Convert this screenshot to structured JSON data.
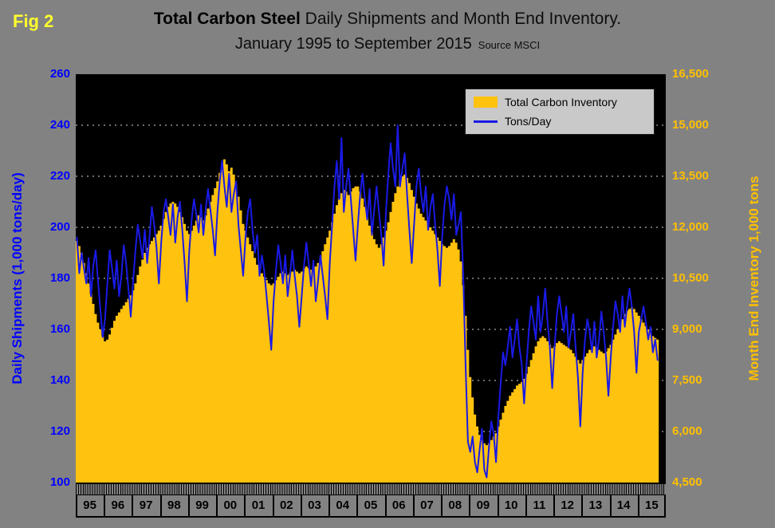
{
  "header": {
    "fig": "Fig 2",
    "title_bold": "Total Carbon Steel",
    "title_rest": " Daily Shipments and Month End Inventory.",
    "subtitle": "January 1995 to September 2015",
    "source": "Source MSCI"
  },
  "left_axis": {
    "title": "Daily Shipments (1,000 tons/day)",
    "color": "#0000FF",
    "ticks": [
      "260",
      "240",
      "220",
      "200",
      "180",
      "160",
      "140",
      "120",
      "100"
    ]
  },
  "right_axis": {
    "title": "Month End Inventory 1,000 tons",
    "color": "#FFC000",
    "ticks": [
      "16,500",
      "15,000",
      "13,500",
      "12,000",
      "10,500",
      "9,000",
      "7,500",
      "6,000",
      "4,500"
    ]
  },
  "x_axis": {
    "years": [
      "95",
      "96",
      "97",
      "98",
      "99",
      "00",
      "01",
      "02",
      "03",
      "04",
      "05",
      "06",
      "07",
      "08",
      "09",
      "10",
      "11",
      "12",
      "13",
      "14",
      "15"
    ]
  },
  "legend": {
    "items": [
      {
        "label": "Total Carbon Inventory",
        "swatch": "area",
        "color": "#FFC20E"
      },
      {
        "label": "Tons/Day",
        "swatch": "line",
        "color": "#1A1AE6"
      }
    ]
  },
  "chart_data": {
    "type": "area+line combo",
    "x_unit": "month",
    "x_start": "1995-01",
    "x_end": "2015-09",
    "x_domain_months": 252,
    "grid": "horizontal white dashed",
    "plot_background": "#000000",
    "left_axis": {
      "label": "Daily Shipments (1,000 tons/day)",
      "range": [
        100,
        260
      ],
      "tick_step": 20
    },
    "right_axis": {
      "label": "Month End Inventory 1,000 tons",
      "range": [
        4500,
        16500
      ],
      "tick_step": 1500
    },
    "series": [
      {
        "name": "Total Carbon Inventory",
        "type": "area",
        "axis": "right",
        "color": "#FFC20E",
        "values": [
          11600,
          11450,
          11250,
          10950,
          10650,
          10350,
          10050,
          9750,
          9450,
          9200,
          9000,
          8800,
          8650,
          8700,
          8850,
          9050,
          9250,
          9400,
          9500,
          9600,
          9700,
          9800,
          9900,
          10000,
          10150,
          10350,
          10600,
          10850,
          11050,
          11250,
          11400,
          11500,
          11600,
          11700,
          11800,
          11900,
          12050,
          12250,
          12450,
          12600,
          12700,
          12750,
          12700,
          12600,
          12450,
          12300,
          12100,
          11900,
          11800,
          11900,
          12050,
          12200,
          12350,
          12300,
          12200,
          12350,
          12550,
          12750,
          12950,
          13150,
          13350,
          13600,
          13850,
          14000,
          13850,
          13650,
          13750,
          13550,
          13250,
          12900,
          12500,
          12100,
          11900,
          11700,
          11500,
          11300,
          11100,
          10900,
          10750,
          10650,
          10550,
          10450,
          10350,
          10300,
          10350,
          10450,
          10550,
          10650,
          10700,
          10650,
          10600,
          10650,
          10700,
          10750,
          10700,
          10650,
          10700,
          10800,
          10850,
          10800,
          10750,
          10800,
          10850,
          10950,
          11100,
          11300,
          11500,
          11700,
          11900,
          12150,
          12400,
          12650,
          12850,
          13000,
          13100,
          13050,
          12950,
          13050,
          13150,
          13200,
          13200,
          13050,
          12850,
          12600,
          12300,
          12050,
          11850,
          11650,
          11500,
          11400,
          11500,
          11700,
          11900,
          12150,
          12450,
          12750,
          13000,
          13200,
          13400,
          13500,
          13550,
          13450,
          13300,
          13100,
          12900,
          12700,
          12550,
          12400,
          12300,
          12200,
          12100,
          12000,
          11900,
          11800,
          11700,
          11600,
          11500,
          11450,
          11400,
          11450,
          11550,
          11650,
          11550,
          11350,
          11000,
          10300,
          9400,
          8400,
          7600,
          7000,
          6500,
          6150,
          5900,
          5750,
          5650,
          5600,
          5650,
          5750,
          5850,
          5950,
          6150,
          6350,
          6550,
          6750,
          6900,
          7050,
          7150,
          7250,
          7350,
          7400,
          7450,
          7550,
          7700,
          7900,
          8100,
          8300,
          8500,
          8650,
          8750,
          8800,
          8750,
          8650,
          8550,
          8450,
          8500,
          8600,
          8650,
          8600,
          8550,
          8500,
          8450,
          8400,
          8300,
          8200,
          8100,
          8000,
          8100,
          8200,
          8300,
          8400,
          8450,
          8500,
          8450,
          8400,
          8350,
          8300,
          8350,
          8450,
          8550,
          8700,
          8850,
          9000,
          9150,
          9300,
          9450,
          9550,
          9600,
          9650,
          9600,
          9500,
          9400,
          9300,
          9200,
          9100,
          9000,
          8900,
          8800,
          8750,
          8700
        ]
      },
      {
        "name": "Tons/Day",
        "type": "line",
        "axis": "left",
        "color": "#1A1AE6",
        "values": [
          196,
          182,
          190,
          184,
          178,
          188,
          173,
          185,
          191,
          179,
          168,
          157,
          164,
          178,
          191,
          184,
          176,
          187,
          173,
          181,
          193,
          186,
          176,
          165,
          179,
          191,
          201,
          195,
          188,
          199,
          186,
          196,
          208,
          201,
          192,
          178,
          194,
          206,
          211,
          204,
          197,
          209,
          194,
          204,
          210,
          199,
          186,
          171,
          191,
          203,
          211,
          205,
          198,
          209,
          197,
          207,
          215,
          207,
          199,
          189,
          206,
          218,
          226,
          216,
          208,
          221,
          206,
          213,
          218,
          201,
          191,
          181,
          196,
          206,
          211,
          199,
          190,
          197,
          181,
          189,
          183,
          173,
          163,
          152,
          171,
          183,
          193,
          186,
          178,
          189,
          173,
          181,
          191,
          181,
          173,
          161,
          173,
          185,
          194,
          186,
          177,
          187,
          171,
          179,
          189,
          181,
          173,
          164,
          186,
          201,
          216,
          226,
          211,
          235,
          206,
          216,
          223,
          211,
          199,
          187,
          201,
          213,
          221,
          211,
          203,
          215,
          197,
          207,
          216,
          206,
          197,
          185,
          206,
          221,
          233,
          223,
          216,
          240,
          216,
          223,
          229,
          213,
          199,
          186,
          201,
          216,
          223,
          213,
          206,
          216,
          199,
          208,
          213,
          201,
          191,
          177,
          196,
          209,
          216,
          211,
          203,
          213,
          197,
          201,
          206,
          181,
          146,
          116,
          112,
          118,
          108,
          104,
          113,
          121,
          105,
          102,
          114,
          124,
          119,
          108,
          126,
          139,
          151,
          146,
          153,
          161,
          149,
          156,
          164,
          153,
          146,
          131,
          146,
          159,
          169,
          163,
          156,
          173,
          159,
          166,
          176,
          163,
          153,
          137,
          153,
          166,
          173,
          166,
          159,
          169,
          153,
          159,
          166,
          153,
          141,
          122,
          143,
          156,
          164,
          159,
          151,
          163,
          149,
          156,
          167,
          159,
          149,
          134,
          149,
          161,
          171,
          166,
          159,
          173,
          161,
          169,
          176,
          169,
          159,
          143,
          159,
          164,
          169,
          163,
          156,
          161,
          151,
          156,
          148
        ]
      }
    ]
  }
}
